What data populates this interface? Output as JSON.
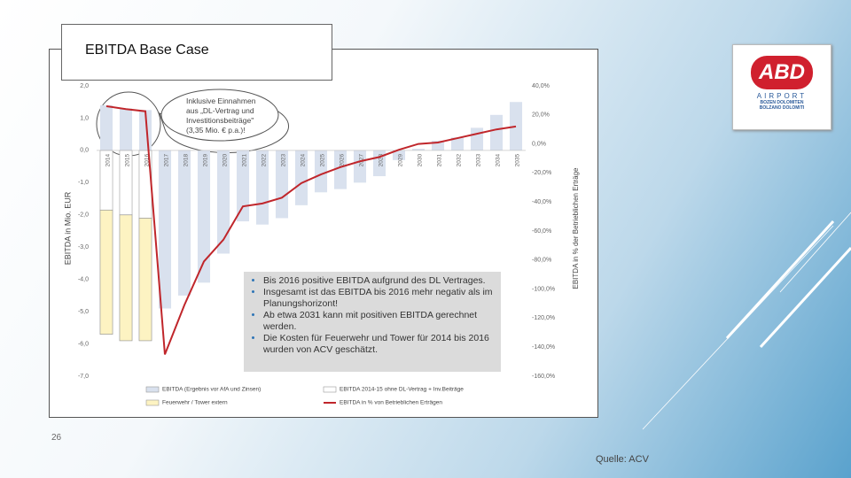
{
  "slide_title": "EBITDA Base Case",
  "page_number": "26",
  "source": "Quelle: ACV",
  "logo": {
    "name": "ABD",
    "sub": "AIRPORT",
    "line1": "BOZEN DOLOMITEN",
    "line2": "BOLZANO DOLOMITI"
  },
  "callout": [
    "Inklusive Einnahmen",
    "aus „DL-Vertrag und",
    "Investitionsbeiträge\"",
    "(3,35 Mio. € p.a.)!"
  ],
  "bullets": [
    "Bis 2016 positive EBITDA aufgrund des DL Vertrages.",
    "Insgesamt ist das EBITDA bis 2016 mehr negativ als im Planungshorizont!",
    "Ab etwa 2031 kann mit positiven EBITDA gerechnet werden.",
    "Die Kosten für Feuerwehr und Tower für 2014 bis 2016 wurden von ACV geschätzt."
  ],
  "chart_data": {
    "type": "bar",
    "ylabel": "EBITDA in Mio. EUR",
    "y2label": "EBITDA in % der Betrieblichen Erträge",
    "categories": [
      "2014",
      "2015",
      "2016",
      "2017",
      "2018",
      "2019",
      "2020",
      "2021",
      "2022",
      "2023",
      "2024",
      "2025",
      "2026",
      "2027",
      "2028",
      "2029",
      "2030",
      "2031",
      "2032",
      "2033",
      "2034",
      "2035"
    ],
    "series": [
      {
        "name": "EBITDA (Ergebnis vor AfA und Zinsen)",
        "type": "bar",
        "color": "#d9e1ee",
        "values": [
          1.4,
          1.3,
          1.25,
          -4.9,
          -4.5,
          -4.1,
          -3.2,
          -2.2,
          -2.3,
          -2.1,
          -1.7,
          -1.3,
          -1.2,
          -1.0,
          -0.8,
          -0.3,
          0.05,
          0.3,
          0.4,
          0.7,
          1.1,
          1.5
        ]
      },
      {
        "name": "EBITDA 2014-15 ohne DL-Vertrag + Inv.Beiträge",
        "type": "bar",
        "color": "#ffffff",
        "values": [
          -1.85,
          -2.0,
          -2.1,
          null,
          null,
          null,
          null,
          null,
          null,
          null,
          null,
          null,
          null,
          null,
          null,
          null,
          null,
          null,
          null,
          null,
          null,
          null
        ]
      },
      {
        "name": "Feuerwehr / Tower extern",
        "type": "bar",
        "color": "#fdf3c2",
        "values": [
          -3.85,
          -3.9,
          -3.8,
          null,
          null,
          null,
          null,
          null,
          null,
          null,
          null,
          null,
          null,
          null,
          null,
          null,
          null,
          null,
          null,
          null,
          null,
          null
        ]
      },
      {
        "name": "EBITDA in % von Betrieblichen Erträgen",
        "type": "line",
        "axis": "y2",
        "color": "#c0262b",
        "values": [
          26,
          24,
          22.5,
          -145,
          -111,
          -81,
          -66,
          -43,
          -41,
          -37,
          -27,
          -21,
          -16,
          -12,
          -9,
          -4,
          0,
          1,
          4,
          7,
          10,
          12
        ]
      }
    ],
    "ylim": [
      -7,
      2
    ],
    "yticks": [
      {
        "value": 2,
        "label": "2,0"
      },
      {
        "value": 1,
        "label": "1,0"
      },
      {
        "value": 0,
        "label": "0,0"
      },
      {
        "value": -1,
        "label": "-1,0"
      },
      {
        "value": -2,
        "label": "-2,0"
      },
      {
        "value": -3,
        "label": "-3,0"
      },
      {
        "value": -4,
        "label": "-4,0"
      },
      {
        "value": -5,
        "label": "-5,0"
      },
      {
        "value": -6,
        "label": "-6,0"
      },
      {
        "value": -7,
        "label": "-7,0"
      }
    ],
    "y2lim": [
      -160,
      40
    ],
    "y2ticks": [
      {
        "value": 40,
        "label": "40,0%"
      },
      {
        "value": 20,
        "label": "20,0%"
      },
      {
        "value": 0,
        "label": "0,0%"
      },
      {
        "value": -20,
        "label": "-20,0%"
      },
      {
        "value": -40,
        "label": "-40,0%"
      },
      {
        "value": -60,
        "label": "-60,0%"
      },
      {
        "value": -80,
        "label": "-80,0%"
      },
      {
        "value": -100,
        "label": "-100,0%"
      },
      {
        "value": -120,
        "label": "-120,0%"
      },
      {
        "value": -140,
        "label": "-140,0%"
      },
      {
        "value": -160,
        "label": "-160,0%"
      }
    ]
  }
}
